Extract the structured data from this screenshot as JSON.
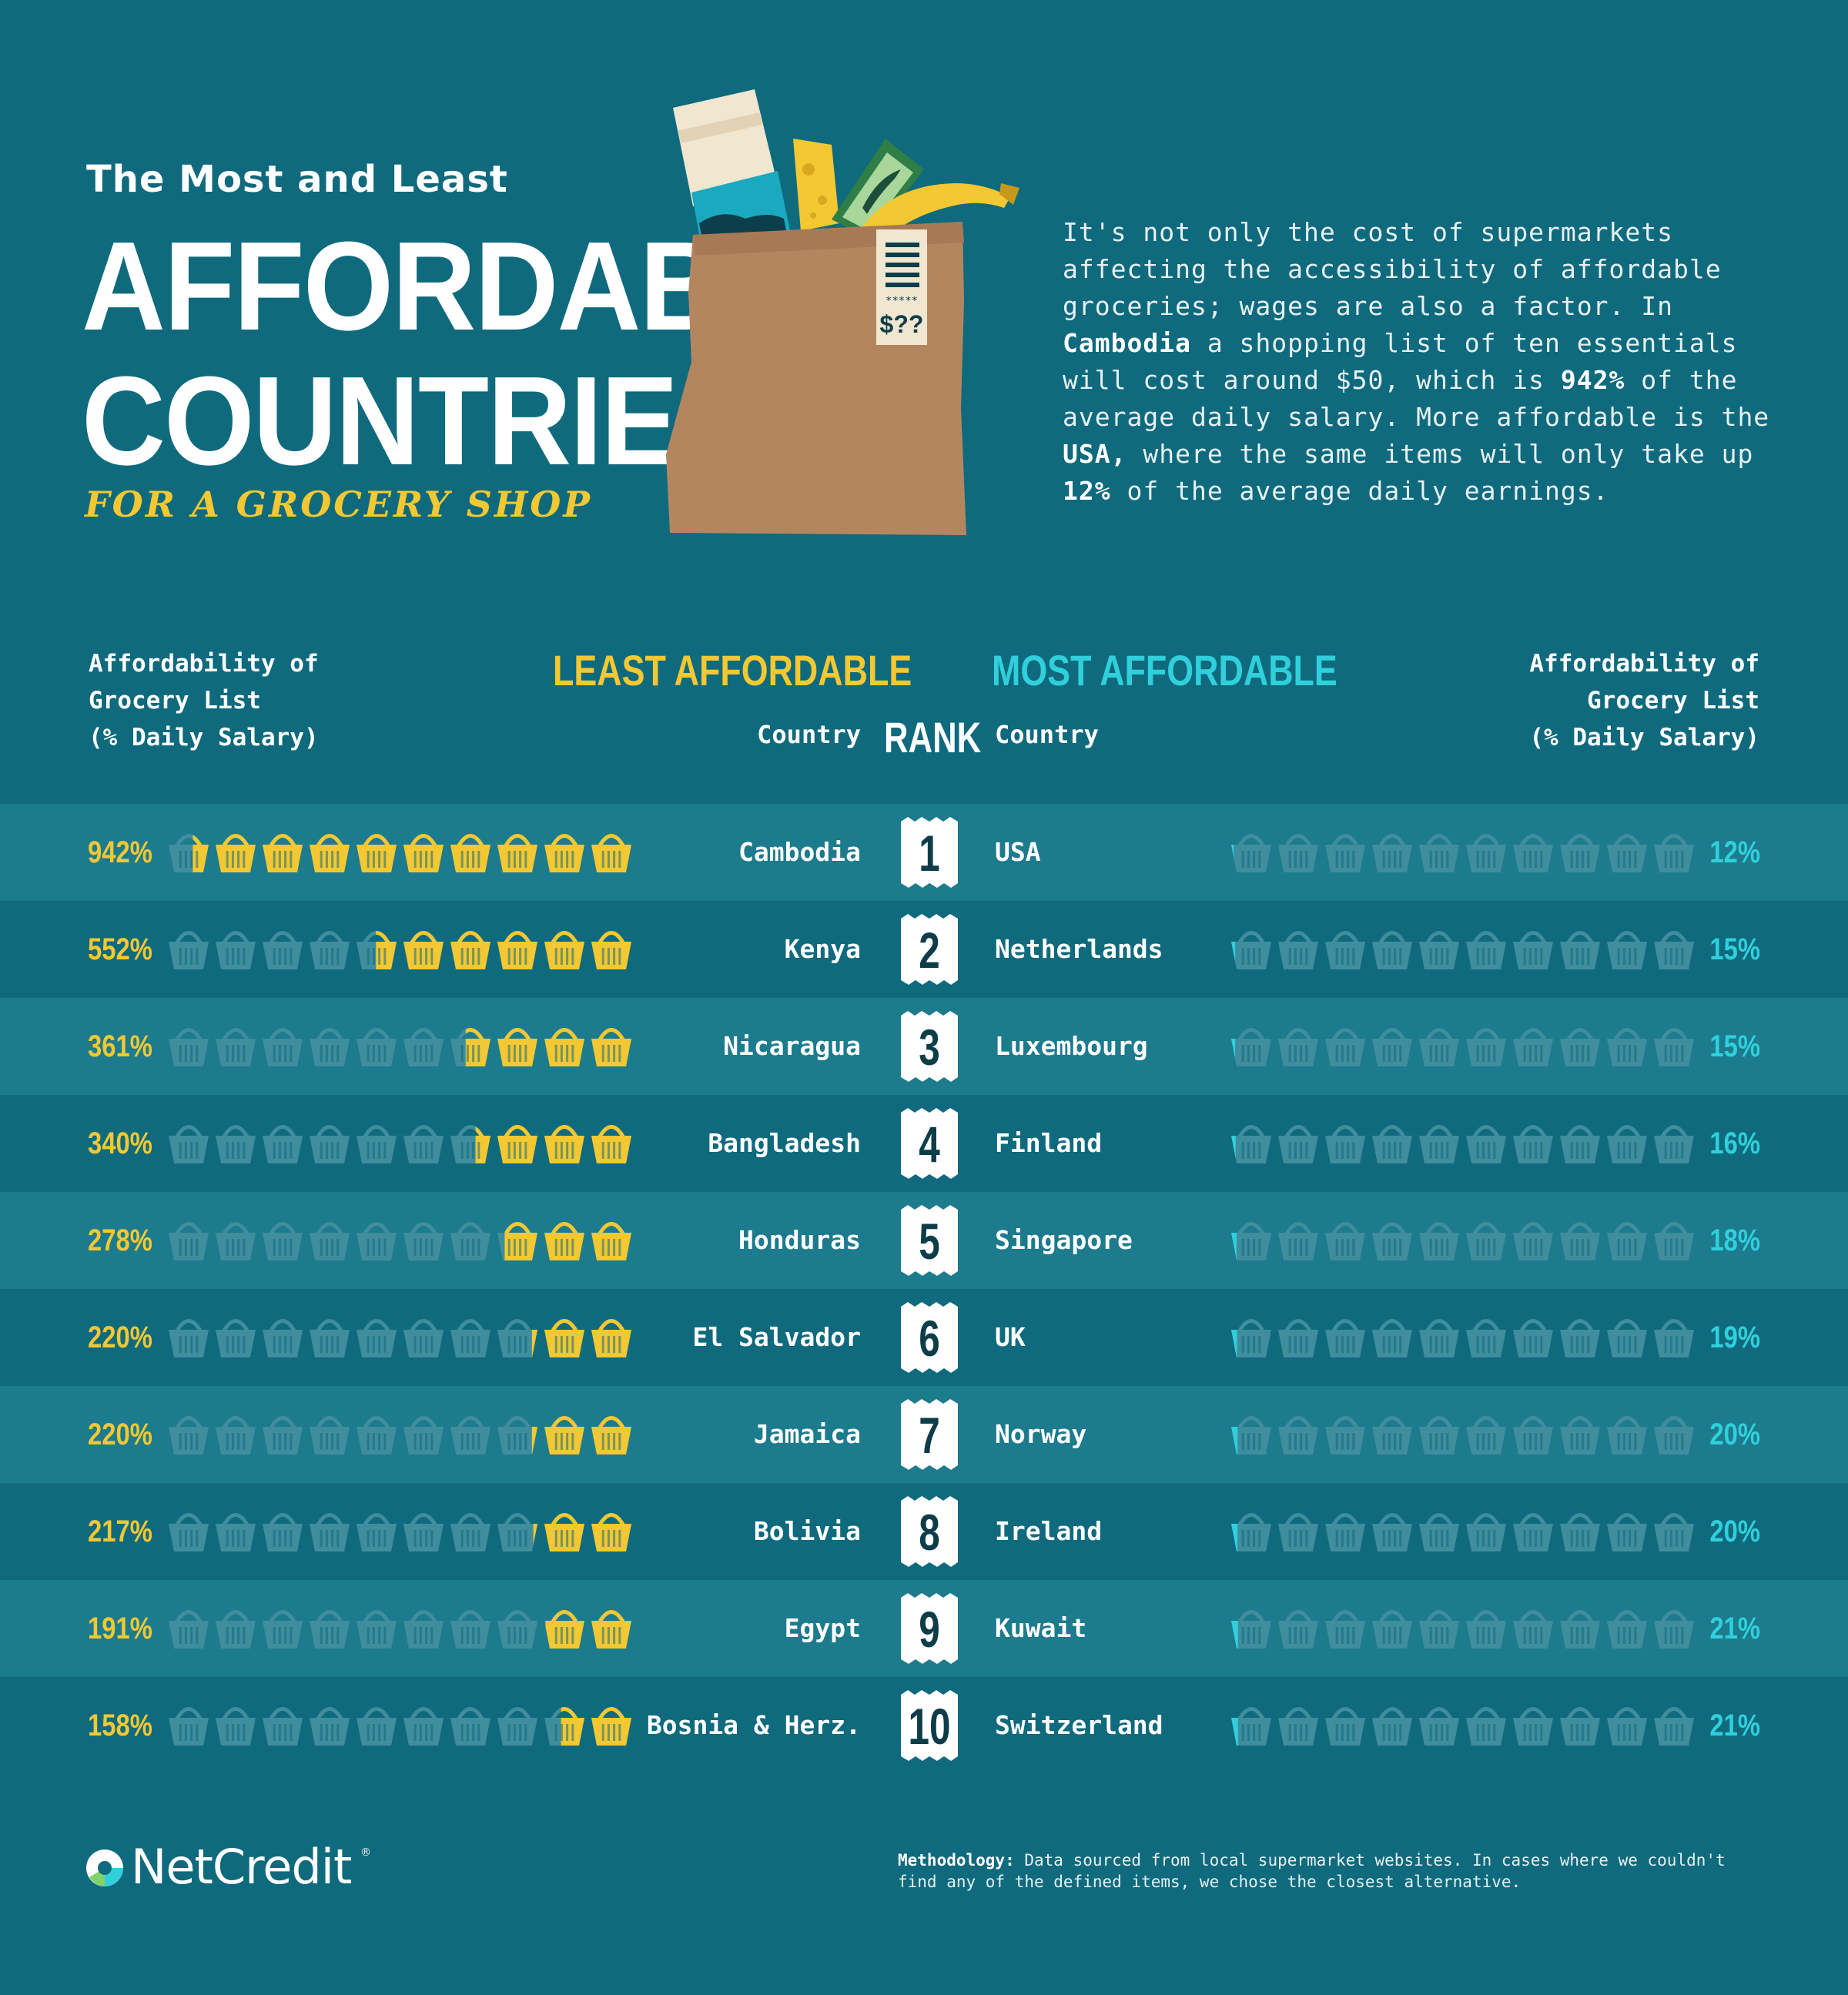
{
  "header": {
    "kicker": "The Most and Least",
    "title_line1": "AFFORDABLE",
    "title_line2": "COUNTRIES",
    "subtitle": "FOR A GROCERY SHOP",
    "receipt_label": "$??",
    "receipt_stars": "*****"
  },
  "intro": {
    "part1": "It's not only the cost of supermarkets affecting the accessibility of affordable groceries; wages are also a factor. In ",
    "bold1": "Cambodia",
    "part2": " a shopping list of ten essentials will cost around $50, which is ",
    "bold2": "942%",
    "part3": " of the average daily salary. More affordable is the ",
    "bold3": "USA,",
    "part4": " where the same items will only take up ",
    "bold4": "12%",
    "part5": " of the average daily earnings."
  },
  "columns": {
    "left_metric_line1": "Affordability of",
    "left_metric_line2": "Grocery List",
    "left_metric_line3": "(% Daily Salary)",
    "least_title": "LEAST AFFORDABLE",
    "most_title": "MOST AFFORDABLE",
    "country_left": "Country",
    "rank": "RANK",
    "country_right": "Country",
    "right_metric_line1": "Affordability of",
    "right_metric_line2": "Grocery List",
    "right_metric_line3": "(% Daily Salary)"
  },
  "chart_data": {
    "type": "table",
    "title": "The Most and Least Affordable Countries for a Grocery Shop",
    "unit": "% Daily Salary",
    "scale_max_percent": 1000,
    "baskets_per_row": 10,
    "least_affordable": [
      {
        "rank": "1",
        "country": "Cambodia",
        "value": 942,
        "label": "942%"
      },
      {
        "rank": "2",
        "country": "Kenya",
        "value": 552,
        "label": "552%"
      },
      {
        "rank": "3",
        "country": "Nicaragua",
        "value": 361,
        "label": "361%"
      },
      {
        "rank": "4",
        "country": "Bangladesh",
        "value": 340,
        "label": "340%"
      },
      {
        "rank": "5",
        "country": "Honduras",
        "value": 278,
        "label": "278%"
      },
      {
        "rank": "6",
        "country": "El Salvador",
        "value": 220,
        "label": "220%"
      },
      {
        "rank": "7",
        "country": "Jamaica",
        "value": 220,
        "label": "220%"
      },
      {
        "rank": "8",
        "country": "Bolivia",
        "value": 217,
        "label": "217%"
      },
      {
        "rank": "9",
        "country": "Egypt",
        "value": 191,
        "label": "191%"
      },
      {
        "rank": "10",
        "country": "Bosnia & Herz.",
        "value": 158,
        "label": "158%"
      }
    ],
    "most_affordable": [
      {
        "rank": "1",
        "country": "USA",
        "value": 12,
        "label": "12%"
      },
      {
        "rank": "2",
        "country": "Netherlands",
        "value": 15,
        "label": "15%"
      },
      {
        "rank": "3",
        "country": "Luxembourg",
        "value": 15,
        "label": "15%"
      },
      {
        "rank": "4",
        "country": "Finland",
        "value": 16,
        "label": "16%"
      },
      {
        "rank": "5",
        "country": "Singapore",
        "value": 18,
        "label": "18%"
      },
      {
        "rank": "6",
        "country": "UK",
        "value": 19,
        "label": "19%"
      },
      {
        "rank": "7",
        "country": "Norway",
        "value": 20,
        "label": "20%"
      },
      {
        "rank": "8",
        "country": "Ireland",
        "value": 20,
        "label": "20%"
      },
      {
        "rank": "9",
        "country": "Kuwait",
        "value": 21,
        "label": "21%"
      },
      {
        "rank": "10",
        "country": "Switzerland",
        "value": 21,
        "label": "21%"
      }
    ]
  },
  "colors": {
    "background": "#0f6a7d",
    "row_alt": "#1c7b8d",
    "least_accent": "#f3c832",
    "most_accent": "#2fd0dc",
    "basket_empty": "#3f8d9d"
  },
  "footer": {
    "brand": "NetCredit",
    "brand_mark": "®",
    "methodology_label": "Methodology:",
    "methodology_text": " Data sourced from local supermarket websites. In cases where we couldn't find any of the defined items, we chose the closest alternative."
  }
}
